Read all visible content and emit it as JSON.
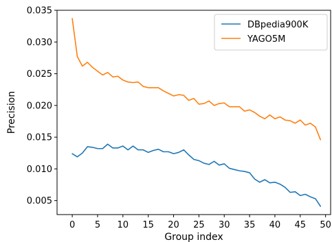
{
  "chart_data": {
    "type": "line",
    "xlabel": "Group index",
    "ylabel": "Precision",
    "xlim": [
      -3,
      51
    ],
    "ylim": [
      0.0028,
      0.035
    ],
    "xticks": [
      "0",
      "5",
      "10",
      "15",
      "20",
      "25",
      "30",
      "35",
      "40",
      "45",
      "50"
    ],
    "yticks": [
      "0.005",
      "0.010",
      "0.015",
      "0.020",
      "0.025",
      "0.030",
      "0.035"
    ],
    "legend_position": "top-right",
    "grid": false,
    "series": [
      {
        "name": "DBpedia900K",
        "color": "#1f77b4",
        "x": [
          0,
          1,
          2,
          3,
          4,
          5,
          6,
          7,
          8,
          9,
          10,
          11,
          12,
          13,
          14,
          15,
          16,
          17,
          18,
          19,
          20,
          21,
          22,
          23,
          24,
          25,
          26,
          27,
          28,
          29,
          30,
          31,
          32,
          33,
          34,
          35,
          36,
          37,
          38,
          39,
          40,
          41,
          42,
          43,
          44,
          45,
          46,
          47,
          48,
          49
        ],
        "y": [
          0.0124,
          0.0119,
          0.0125,
          0.0135,
          0.0134,
          0.0132,
          0.0132,
          0.0139,
          0.0133,
          0.0133,
          0.0136,
          0.013,
          0.0136,
          0.013,
          0.013,
          0.0126,
          0.0129,
          0.0131,
          0.0127,
          0.0127,
          0.0124,
          0.0126,
          0.013,
          0.0122,
          0.0115,
          0.0113,
          0.0109,
          0.0107,
          0.0112,
          0.0106,
          0.0108,
          0.0101,
          0.0099,
          0.0097,
          0.0096,
          0.0094,
          0.0084,
          0.0079,
          0.0083,
          0.0078,
          0.0079,
          0.0076,
          0.0071,
          0.0063,
          0.0064,
          0.0058,
          0.006,
          0.0056,
          0.0053,
          0.0041
        ]
      },
      {
        "name": "YAGO5M",
        "color": "#ff7f0e",
        "x": [
          0,
          1,
          2,
          3,
          4,
          5,
          6,
          7,
          8,
          9,
          10,
          11,
          12,
          13,
          14,
          15,
          16,
          17,
          18,
          19,
          20,
          21,
          22,
          23,
          24,
          25,
          26,
          27,
          28,
          29,
          30,
          31,
          32,
          33,
          34,
          35,
          36,
          37,
          38,
          39,
          40,
          41,
          42,
          43,
          44,
          45,
          46,
          47,
          48,
          49
        ],
        "y": [
          0.0337,
          0.0277,
          0.0262,
          0.0268,
          0.026,
          0.0254,
          0.0248,
          0.0252,
          0.0245,
          0.0246,
          0.024,
          0.0237,
          0.0236,
          0.0237,
          0.023,
          0.0228,
          0.0228,
          0.0228,
          0.0223,
          0.0219,
          0.0215,
          0.0217,
          0.0216,
          0.0208,
          0.0211,
          0.0202,
          0.0203,
          0.0207,
          0.02,
          0.0203,
          0.0204,
          0.0198,
          0.0198,
          0.0198,
          0.0191,
          0.0193,
          0.0189,
          0.0183,
          0.0179,
          0.0185,
          0.0179,
          0.0182,
          0.0177,
          0.0176,
          0.0172,
          0.0177,
          0.0169,
          0.0172,
          0.0166,
          0.0146
        ]
      }
    ]
  }
}
